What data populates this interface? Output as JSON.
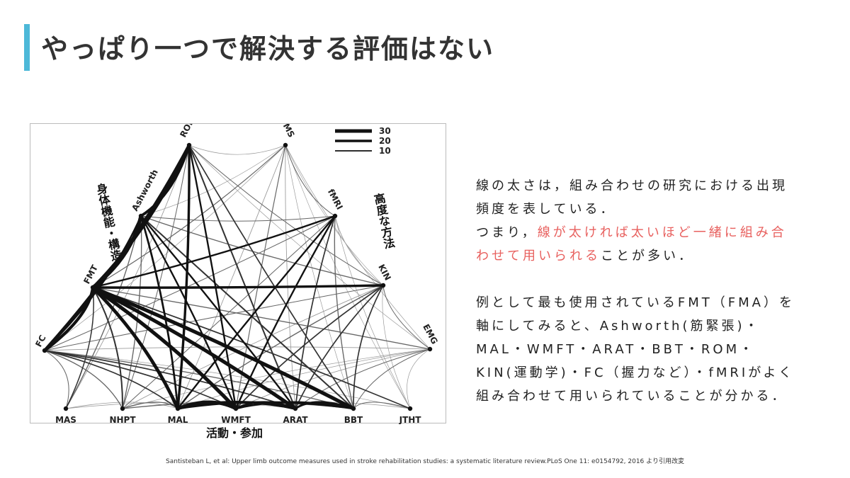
{
  "slide": {
    "title": "やっぱり一つで解決する評価はない",
    "citation": "Santisteban L, et al: Upper limb outcome measures used in stroke rehabilitation studies: a systematic literature review.PLoS One 11: e0154792, 2016 より引用改変"
  },
  "diagram": {
    "nodes": [
      {
        "id": "ROM",
        "label": "ROM"
      },
      {
        "id": "TMS",
        "label": "TMS"
      },
      {
        "id": "Ashworth",
        "label": "Ashworth"
      },
      {
        "id": "fMRI",
        "label": "fMRI"
      },
      {
        "id": "FMT",
        "label": "FMT"
      },
      {
        "id": "KIN",
        "label": "KIN"
      },
      {
        "id": "FC",
        "label": "FC"
      },
      {
        "id": "EMG",
        "label": "EMG"
      },
      {
        "id": "MAS",
        "label": "MAS"
      },
      {
        "id": "NHPT",
        "label": "NHPT"
      },
      {
        "id": "MAL",
        "label": "MAL"
      },
      {
        "id": "WMFT",
        "label": "WMFT"
      },
      {
        "id": "ARAT",
        "label": "ARAT"
      },
      {
        "id": "BBT",
        "label": "BBT"
      },
      {
        "id": "JTHT",
        "label": "JTHT"
      }
    ],
    "legend": [
      {
        "label": "30",
        "value": 30
      },
      {
        "label": "20",
        "value": 20
      },
      {
        "label": "10",
        "value": 10
      }
    ],
    "categories": {
      "left": "身体機能・構造",
      "right": "高度な方法",
      "bottom": "活動・参加"
    },
    "edges": [
      {
        "from": "FMT",
        "to": "Ashworth",
        "value": 30
      },
      {
        "from": "FMT",
        "to": "ROM",
        "value": 22
      },
      {
        "from": "FMT",
        "to": "FC",
        "value": 25
      },
      {
        "from": "FMT",
        "to": "MAL",
        "value": 28
      },
      {
        "from": "FMT",
        "to": "WMFT",
        "value": 30
      },
      {
        "from": "FMT",
        "to": "ARAT",
        "value": 30
      },
      {
        "from": "FMT",
        "to": "BBT",
        "value": 30
      },
      {
        "from": "FMT",
        "to": "KIN",
        "value": 20
      },
      {
        "from": "FMT",
        "to": "fMRI",
        "value": 14
      },
      {
        "from": "FMT",
        "to": "MAS",
        "value": 9
      },
      {
        "from": "FMT",
        "to": "NHPT",
        "value": 12
      },
      {
        "from": "FMT",
        "to": "EMG",
        "value": 8
      },
      {
        "from": "FMT",
        "to": "TMS",
        "value": 7
      },
      {
        "from": "FMT",
        "to": "JTHT",
        "value": 10
      },
      {
        "from": "ROM",
        "to": "Ashworth",
        "value": 22
      },
      {
        "from": "ROM",
        "to": "FC",
        "value": 26
      },
      {
        "from": "ROM",
        "to": "MAL",
        "value": 20
      },
      {
        "from": "ROM",
        "to": "WMFT",
        "value": 14
      },
      {
        "from": "ROM",
        "to": "ARAT",
        "value": 12
      },
      {
        "from": "ROM",
        "to": "BBT",
        "value": 10
      },
      {
        "from": "ROM",
        "to": "KIN",
        "value": 6
      },
      {
        "from": "ROM",
        "to": "TMS",
        "value": 4
      },
      {
        "from": "ROM",
        "to": "MAS",
        "value": 5
      },
      {
        "from": "ROM",
        "to": "NHPT",
        "value": 6
      },
      {
        "from": "ROM",
        "to": "EMG",
        "value": 4
      },
      {
        "from": "Ashworth",
        "to": "FC",
        "value": 14
      },
      {
        "from": "Ashworth",
        "to": "MAL",
        "value": 16
      },
      {
        "from": "Ashworth",
        "to": "WMFT",
        "value": 14
      },
      {
        "from": "Ashworth",
        "to": "ARAT",
        "value": 14
      },
      {
        "from": "Ashworth",
        "to": "BBT",
        "value": 12
      },
      {
        "from": "Ashworth",
        "to": "fMRI",
        "value": 6
      },
      {
        "from": "Ashworth",
        "to": "KIN",
        "value": 8
      },
      {
        "from": "Ashworth",
        "to": "MAS",
        "value": 8
      },
      {
        "from": "Ashworth",
        "to": "NHPT",
        "value": 8
      },
      {
        "from": "Ashworth",
        "to": "TMS",
        "value": 4
      },
      {
        "from": "TMS",
        "to": "fMRI",
        "value": 6
      },
      {
        "from": "TMS",
        "to": "MAL",
        "value": 5
      },
      {
        "from": "TMS",
        "to": "WMFT",
        "value": 7
      },
      {
        "from": "TMS",
        "to": "ARAT",
        "value": 5
      },
      {
        "from": "TMS",
        "to": "BBT",
        "value": 4
      },
      {
        "from": "TMS",
        "to": "KIN",
        "value": 3
      },
      {
        "from": "TMS",
        "to": "EMG",
        "value": 4
      },
      {
        "from": "TMS",
        "to": "FC",
        "value": 4
      },
      {
        "from": "TMS",
        "to": "JTHT",
        "value": 3
      },
      {
        "from": "fMRI",
        "to": "MAL",
        "value": 14
      },
      {
        "from": "fMRI",
        "to": "WMFT",
        "value": 14
      },
      {
        "from": "fMRI",
        "to": "ARAT",
        "value": 10
      },
      {
        "from": "fMRI",
        "to": "BBT",
        "value": 8
      },
      {
        "from": "fMRI",
        "to": "FC",
        "value": 6
      },
      {
        "from": "fMRI",
        "to": "KIN",
        "value": 5
      },
      {
        "from": "fMRI",
        "to": "NHPT",
        "value": 6
      },
      {
        "from": "fMRI",
        "to": "JTHT",
        "value": 4
      },
      {
        "from": "KIN",
        "to": "MAL",
        "value": 8
      },
      {
        "from": "KIN",
        "to": "WMFT",
        "value": 10
      },
      {
        "from": "KIN",
        "to": "ARAT",
        "value": 10
      },
      {
        "from": "KIN",
        "to": "BBT",
        "value": 10
      },
      {
        "from": "KIN",
        "to": "FC",
        "value": 6
      },
      {
        "from": "KIN",
        "to": "EMG",
        "value": 6
      },
      {
        "from": "KIN",
        "to": "NHPT",
        "value": 5
      },
      {
        "from": "KIN",
        "to": "JTHT",
        "value": 4
      },
      {
        "from": "FC",
        "to": "MAS",
        "value": 6
      },
      {
        "from": "FC",
        "to": "NHPT",
        "value": 8
      },
      {
        "from": "FC",
        "to": "MAL",
        "value": 10
      },
      {
        "from": "FC",
        "to": "WMFT",
        "value": 10
      },
      {
        "from": "FC",
        "to": "ARAT",
        "value": 10
      },
      {
        "from": "FC",
        "to": "BBT",
        "value": 8
      },
      {
        "from": "FC",
        "to": "EMG",
        "value": 5
      },
      {
        "from": "FC",
        "to": "JTHT",
        "value": 4
      },
      {
        "from": "EMG",
        "to": "MAL",
        "value": 4
      },
      {
        "from": "EMG",
        "to": "WMFT",
        "value": 5
      },
      {
        "from": "EMG",
        "to": "ARAT",
        "value": 6
      },
      {
        "from": "EMG",
        "to": "BBT",
        "value": 6
      },
      {
        "from": "EMG",
        "to": "JTHT",
        "value": 4
      },
      {
        "from": "EMG",
        "to": "NHPT",
        "value": 4
      },
      {
        "from": "MAL",
        "to": "WMFT",
        "value": 28
      },
      {
        "from": "MAL",
        "to": "ARAT",
        "value": 22
      },
      {
        "from": "MAL",
        "to": "BBT",
        "value": 16
      },
      {
        "from": "WMFT",
        "to": "ARAT",
        "value": 18
      },
      {
        "from": "WMFT",
        "to": "BBT",
        "value": 16
      },
      {
        "from": "ARAT",
        "to": "BBT",
        "value": 18
      },
      {
        "from": "MAL",
        "to": "NHPT",
        "value": 8
      },
      {
        "from": "NHPT",
        "to": "BBT",
        "value": 8
      },
      {
        "from": "MAS",
        "to": "MAL",
        "value": 5
      },
      {
        "from": "MAS",
        "to": "ARAT",
        "value": 4
      },
      {
        "from": "JTHT",
        "to": "BBT",
        "value": 6
      },
      {
        "from": "JTHT",
        "to": "WMFT",
        "value": 4
      }
    ]
  },
  "explanation": {
    "para1_line1": "線の太さは，組み合わせの研究における出現",
    "para1_line2": "頻度を表している．",
    "para1_line3_pre": "つまり，",
    "para1_line3_hl": "線が太ければ太いほど一緒に組み合",
    "para1_line4_hl": "わせて用いられる",
    "para1_line4_post": "ことが多い．",
    "para2_line1": "例として最も使用されているFMT（FMA）を",
    "para2_line2": "軸にしてみると、Ashworth(筋緊張)・",
    "para2_line3": "MAL・WMFT・ARAT・BBT・ROM・",
    "para2_line4": "KIN(運動学)・FC（握力など）・fMRIがよく",
    "para2_line5": "組み合わせて用いられていることが分かる．"
  },
  "colors": {
    "accent_bar": "#4db8d8",
    "highlight_text": "#e8615f"
  }
}
